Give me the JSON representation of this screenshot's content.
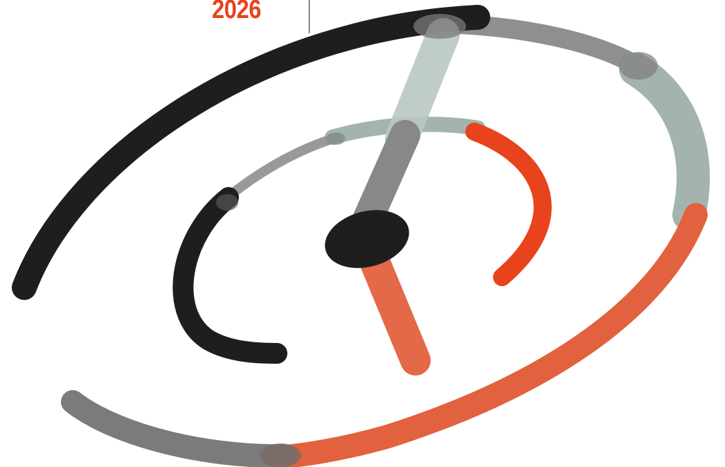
{
  "header": {
    "year": "2026"
  },
  "emblem": {
    "colors": {
      "black": "#1e1e1e",
      "gray": "#8c8c8c",
      "sage": "#a3b4ad",
      "orange": "#e8431c",
      "salmon": "#e2613f"
    }
  }
}
